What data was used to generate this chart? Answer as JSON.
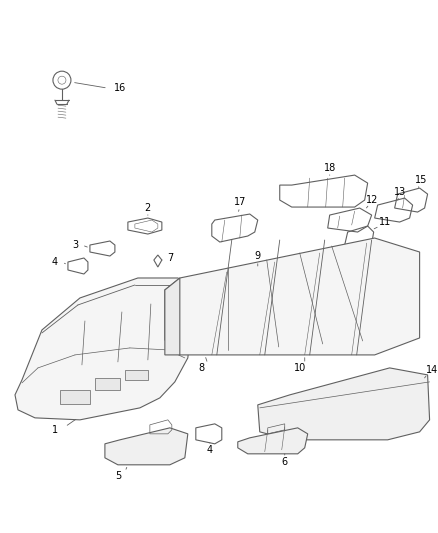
{
  "background_color": "#ffffff",
  "line_color": "#606060",
  "label_color": "#000000",
  "fig_width": 4.38,
  "fig_height": 5.33,
  "dpi": 100
}
